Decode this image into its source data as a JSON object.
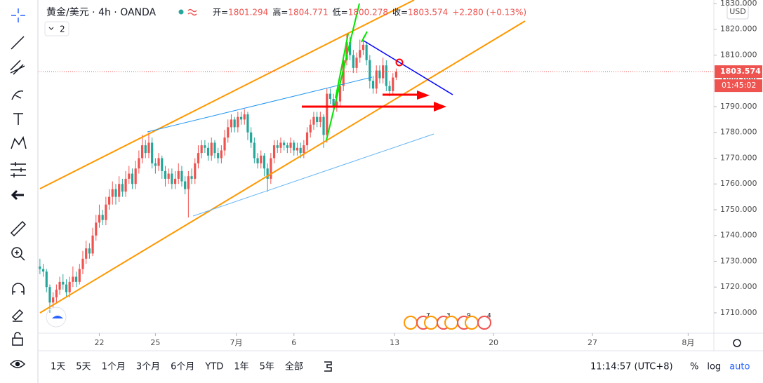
{
  "chart_data": {
    "type": "candlestick",
    "title": "黄金/美元 · 4h · OANDA",
    "badge": "2",
    "ohlc_labels": [
      "开=",
      "高=",
      "低=",
      "收="
    ],
    "change": "+2.280 (+0.13%)",
    "currency": "USD",
    "countdown": "01:45:02",
    "up_color": "#ef5350",
    "down_color": "#26a69a",
    "ylim": [
      1702.1,
      1831.36
    ],
    "yticks": [
      1710,
      1720,
      1730,
      1740,
      1750,
      1760,
      1770,
      1780,
      1790,
      1800,
      1810,
      1820,
      1830
    ],
    "ytick_labels": [
      "1710.000",
      "1720.000",
      "1730.000",
      "1740.000",
      "1750.000",
      "1760.000",
      "1770.000",
      "1780.000",
      "1790.000",
      "1800.000",
      "1810.000",
      "1820.000",
      "1830.000"
    ],
    "xlim": [
      -0.4,
      204.3
    ],
    "xticks": [
      {
        "value": 18,
        "label": "22"
      },
      {
        "value": 35,
        "label": "25"
      },
      {
        "value": 59.5,
        "label": "7月"
      },
      {
        "value": 77,
        "label": "6"
      },
      {
        "value": 107.5,
        "label": "13"
      },
      {
        "value": 137.5,
        "label": "20"
      },
      {
        "value": 167.5,
        "label": "27"
      },
      {
        "value": 196.5,
        "label": "8月"
      }
    ],
    "candles": [
      [
        1728,
        1731,
        1725,
        1727
      ],
      [
        1727,
        1729,
        1724,
        1726
      ],
      [
        1726,
        1727,
        1718,
        1720
      ],
      [
        1720,
        1721,
        1710,
        1714
      ],
      [
        1714,
        1718,
        1712,
        1716
      ],
      [
        1716,
        1721,
        1714,
        1719
      ],
      [
        1719,
        1724,
        1717,
        1722
      ],
      [
        1722,
        1725,
        1719,
        1721
      ],
      [
        1721,
        1723,
        1716,
        1718
      ],
      [
        1718,
        1724,
        1716,
        1722
      ],
      [
        1722,
        1728,
        1720,
        1724
      ],
      [
        1724,
        1726,
        1720,
        1722
      ],
      [
        1722,
        1729,
        1721,
        1727
      ],
      [
        1727,
        1734,
        1725,
        1731
      ],
      [
        1731,
        1738,
        1729,
        1735
      ],
      [
        1735,
        1737,
        1731,
        1733
      ],
      [
        1733,
        1743,
        1732,
        1740
      ],
      [
        1740,
        1748,
        1738,
        1745
      ],
      [
        1745,
        1752,
        1743,
        1748
      ],
      [
        1748,
        1750,
        1744,
        1746
      ],
      [
        1746,
        1755,
        1744,
        1752
      ],
      [
        1752,
        1758,
        1750,
        1755
      ],
      [
        1755,
        1761,
        1752,
        1758
      ],
      [
        1758,
        1760,
        1752,
        1755
      ],
      [
        1755,
        1763,
        1753,
        1760
      ],
      [
        1760,
        1762,
        1755,
        1757
      ],
      [
        1757,
        1765,
        1755,
        1762
      ],
      [
        1762,
        1767,
        1760,
        1764
      ],
      [
        1764,
        1766,
        1758,
        1760
      ],
      [
        1760,
        1769,
        1758,
        1766
      ],
      [
        1766,
        1773,
        1764,
        1770
      ],
      [
        1770,
        1779,
        1768,
        1775
      ],
      [
        1775,
        1777,
        1770,
        1772
      ],
      [
        1772,
        1780,
        1770,
        1776
      ],
      [
        1776,
        1778,
        1766,
        1768
      ],
      [
        1768,
        1770,
        1764,
        1767
      ],
      [
        1767,
        1772,
        1765,
        1770
      ],
      [
        1770,
        1771,
        1762,
        1765
      ],
      [
        1765,
        1767,
        1759,
        1762
      ],
      [
        1762,
        1766,
        1760,
        1764
      ],
      [
        1764,
        1766,
        1758,
        1760
      ],
      [
        1760,
        1765,
        1758,
        1762
      ],
      [
        1762,
        1768,
        1760,
        1765
      ],
      [
        1765,
        1767,
        1759,
        1761
      ],
      [
        1761,
        1763,
        1756,
        1758
      ],
      [
        1758,
        1765,
        1747,
        1763
      ],
      [
        1763,
        1766,
        1760,
        1762
      ],
      [
        1762,
        1770,
        1760,
        1768
      ],
      [
        1768,
        1775,
        1766,
        1772
      ],
      [
        1772,
        1777,
        1770,
        1775
      ],
      [
        1775,
        1777,
        1772,
        1774
      ],
      [
        1774,
        1776,
        1769,
        1771
      ],
      [
        1771,
        1778,
        1769,
        1776
      ],
      [
        1776,
        1777,
        1770,
        1772
      ],
      [
        1772,
        1774,
        1768,
        1770
      ],
      [
        1770,
        1775,
        1768,
        1773
      ],
      [
        1773,
        1781,
        1771,
        1778
      ],
      [
        1778,
        1785,
        1776,
        1782
      ],
      [
        1782,
        1787,
        1780,
        1785
      ],
      [
        1785,
        1786,
        1780,
        1782
      ],
      [
        1782,
        1788,
        1780,
        1786
      ],
      [
        1786,
        1788,
        1783,
        1785
      ],
      [
        1785,
        1789,
        1783,
        1787
      ],
      [
        1787,
        1788,
        1777,
        1780
      ],
      [
        1780,
        1782,
        1774,
        1776
      ],
      [
        1776,
        1778,
        1768,
        1770
      ],
      [
        1770,
        1772,
        1766,
        1768
      ],
      [
        1768,
        1773,
        1766,
        1771
      ],
      [
        1771,
        1772,
        1763,
        1766
      ],
      [
        1766,
        1768,
        1757,
        1762
      ],
      [
        1762,
        1772,
        1760,
        1770
      ],
      [
        1770,
        1777,
        1768,
        1775
      ],
      [
        1775,
        1777,
        1772,
        1774
      ],
      [
        1774,
        1778,
        1772,
        1776
      ],
      [
        1776,
        1777,
        1773,
        1775
      ],
      [
        1775,
        1776,
        1772,
        1774
      ],
      [
        1774,
        1778,
        1772,
        1776
      ],
      [
        1776,
        1777,
        1771,
        1773
      ],
      [
        1773,
        1776,
        1771,
        1774
      ],
      [
        1774,
        1776,
        1770,
        1772
      ],
      [
        1772,
        1777,
        1770,
        1775
      ],
      [
        1775,
        1782,
        1773,
        1780
      ],
      [
        1780,
        1785,
        1778,
        1783
      ],
      [
        1783,
        1788,
        1781,
        1786
      ],
      [
        1786,
        1788,
        1782,
        1784
      ],
      [
        1784,
        1788,
        1782,
        1786
      ],
      [
        1786,
        1787,
        1774,
        1779
      ],
      [
        1779,
        1797,
        1776,
        1795
      ],
      [
        1795,
        1797,
        1791,
        1793
      ],
      [
        1793,
        1795,
        1788,
        1790
      ],
      [
        1790,
        1794,
        1788,
        1792
      ],
      [
        1792,
        1800,
        1790,
        1798
      ],
      [
        1798,
        1810,
        1796,
        1808
      ],
      [
        1808,
        1818,
        1806,
        1815
      ],
      [
        1815,
        1817,
        1808,
        1810
      ],
      [
        1810,
        1812,
        1803,
        1805
      ],
      [
        1805,
        1811,
        1803,
        1809
      ],
      [
        1809,
        1816,
        1807,
        1812
      ],
      [
        1812,
        1817,
        1810,
        1814
      ],
      [
        1814,
        1815,
        1806,
        1808
      ],
      [
        1808,
        1810,
        1797,
        1800
      ],
      [
        1800,
        1802,
        1795,
        1797
      ],
      [
        1797,
        1806,
        1795,
        1804
      ],
      [
        1804,
        1806,
        1799,
        1801
      ],
      [
        1801,
        1809,
        1799,
        1806
      ],
      [
        1806,
        1808,
        1796,
        1798
      ],
      [
        1798,
        1800,
        1794,
        1796
      ],
      [
        1796,
        1803,
        1795,
        1801.294
      ],
      [
        1801.294,
        1804.771,
        1800.278,
        1803.574
      ]
    ],
    "events": [
      "7",
      "3",
      "9",
      "4"
    ],
    "ranges": [
      "1天",
      "5天",
      "1个月",
      "3个月",
      "6个月",
      "YTD",
      "1年",
      "5年",
      "全部"
    ],
    "clock": "11:14:57 (UTC+8)",
    "scale_buttons": [
      "%",
      "log",
      "auto"
    ]
  }
}
